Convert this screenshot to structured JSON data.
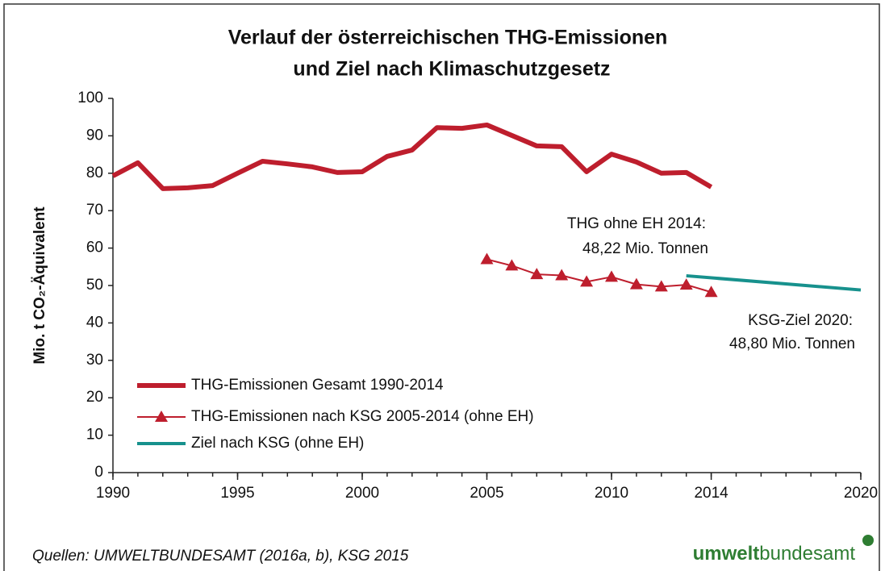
{
  "chart_data": {
    "type": "line",
    "title": [
      "Verlauf der österreichischen THG-Emissionen",
      "und Ziel nach Klimaschutzgesetz"
    ],
    "y_label": "Mio. t CO₂-Äquivalent",
    "xlim": [
      1990,
      2020
    ],
    "xticks": [
      1990,
      1995,
      2000,
      2005,
      2010,
      2014,
      2020
    ],
    "ylim": [
      0,
      100
    ],
    "yticks": [
      0,
      10,
      20,
      30,
      40,
      50,
      60,
      70,
      80,
      90,
      100
    ],
    "series": [
      {
        "name": "THG-Emissionen Gesamt 1990-2014",
        "color": "#be1e2d",
        "x": [
          1990,
          1991,
          1992,
          1993,
          1994,
          1995,
          1996,
          1997,
          1998,
          1999,
          2000,
          2001,
          2002,
          2003,
          2004,
          2005,
          2006,
          2007,
          2008,
          2009,
          2010,
          2011,
          2012,
          2013,
          2014
        ],
        "values": [
          79.3,
          82.8,
          75.9,
          76.1,
          76.7,
          80,
          83.2,
          82.5,
          81.7,
          80.2,
          80.4,
          84.5,
          86.2,
          92.2,
          92,
          92.9,
          90.1,
          87.3,
          87.1,
          80.4,
          85.1,
          83,
          80,
          80.2,
          76.3
        ]
      },
      {
        "name": "THG-Emissionen nach KSG 2005-2014 (ohne EH)",
        "color": "#be1e2d",
        "x": [
          2005,
          2006,
          2007,
          2008,
          2009,
          2010,
          2011,
          2012,
          2013,
          2014
        ],
        "values": [
          57,
          55.3,
          53,
          52.7,
          51,
          52.3,
          50.3,
          49.7,
          50.2,
          48.22
        ]
      },
      {
        "name": "Ziel nach KSG (ohne EH)",
        "color": "#17918d",
        "x": [
          2013,
          2020
        ],
        "values": [
          52.6,
          48.8
        ]
      }
    ],
    "annotations": [
      "THG ohne EH 2014:",
      "48,22 Mio. Tonnen",
      "KSG-Ziel 2020:",
      "48,80 Mio. Tonnen"
    ],
    "source": "Quellen: UMWELTBUNDESAMT (2016a, b), KSG 2015",
    "logo": [
      "umwelt",
      "bundesamt"
    ]
  }
}
